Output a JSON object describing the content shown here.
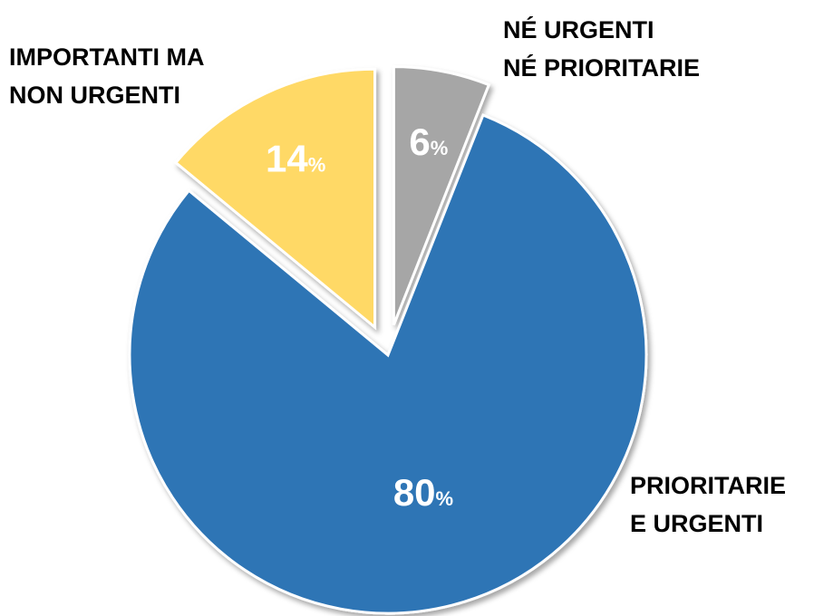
{
  "chart_data": {
    "type": "pie",
    "categories": [
      "NÉ URGENTI\nNÉ PRIORITARIE",
      "PRIORITARIE\nE URGENTI",
      "IMPORTANTI MA\nNON URGENTI"
    ],
    "values": [
      6,
      80,
      14
    ],
    "value_labels": [
      "6%",
      "80%",
      "14%"
    ],
    "colors": [
      "#a6a6a6",
      "#2e74b5",
      "#ffd966"
    ],
    "explode": [
      true,
      false,
      true
    ]
  }
}
